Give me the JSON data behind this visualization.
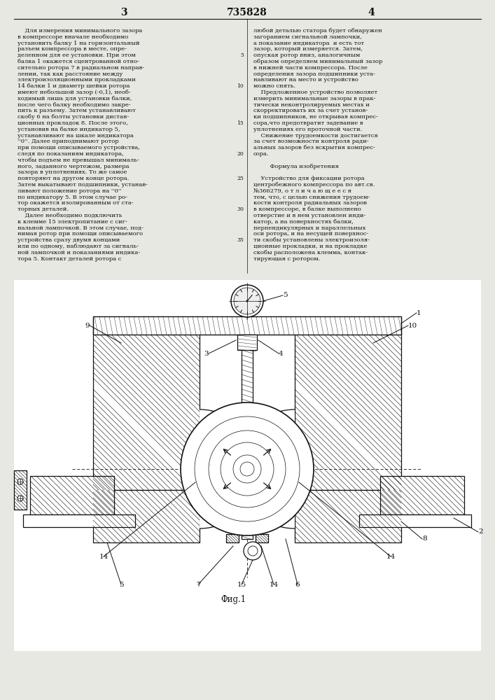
{
  "page_number_left": "3",
  "page_number_center": "735828",
  "page_number_right": "4",
  "background_color": "#e8e8e2",
  "text_color": "#111111",
  "left_column_text": [
    "    Для измерения минимального зазора",
    "в компрессоре вначале необходимо",
    "установить балку 1 на горизонтальный",
    "разъем компрессора в месте, опре-",
    "деленном для ее установки. При этом",
    "балка 1 окажется сцентрованной отно-",
    "сительно ротора 7 в радиальном направ-",
    "лении, так как расстояние между",
    "электроизоляционными прокладками",
    "14 балки 1 и диаметр шейки ротора",
    "имеют небольшой зазор (-0,1), необ-",
    "ходимый лишь для установки балки,",
    "после чего балку необходимо закре-",
    "пить к разъему. Затем устанавливают",
    "скобу 6 на болты установки дистан-",
    "ционных прокладок 8. После этого,",
    "установив на балке индикатор 5,",
    "устанавливают на шкале индикатора",
    "''0''. Далее приподнимают ротор",
    "при помощи описываемого устройства,",
    "следя по показаниям индикатора,",
    "чтобы подъем не превышал минималь-",
    "ного, заданного чертежом, размера",
    "зазора в уплотнениях. То же самое",
    "повторяют на другом конце ротора.",
    "Затем выкатывают подшипники, устанав-",
    "ливают положение ротора на ''0''",
    "по индикатору 5. В этом случае ро-",
    "тор окажется изолированным от ста-",
    "торных деталей.",
    "    Далее необходимо подключить",
    "к клемме 15 электропитание с сиг-",
    "нальной лампочкой. В этом случае, под-",
    "нимая ротор при помощи описываемого",
    "устройства сразу двумя концами",
    "или по одному, наблюдают за сигналь-",
    "ной лампочкой и показаниями индика-",
    "тора 5. Контакт деталей ротора с"
  ],
  "right_column_text": [
    "любой деталью статора будет обнаружен",
    "загоранием сигнальной лампочки,",
    "а показание индикатора  и есть тот",
    "зазор, который измеряется. Затем,",
    "опуская ротор вниз, аналогичным",
    "образом определяем минимальный зазор",
    "в нижней части компрессора. После",
    "определения зазора подшипники уста-",
    "навливают на место и устройство",
    "можно снять.",
    "    Предложенное устройство позволяет",
    "измерить минимальные зазоры в прак-",
    "тически неконтролируемых местах и",
    "скорректировать их за счет установ-",
    "ки подшипников, не открывая компрес-",
    "сора,что предотвратит задевание в",
    "уплотнениях его проточной части.",
    "    Снижение трудоемкости достигается",
    "за счет возможности контроля ради-",
    "альных зазоров без вскрытия компрес-",
    "сора.",
    "",
    "         Формула изобретения",
    "",
    "    Устройство для фиксации ротора",
    "центробежного компрессора по авт.св.",
    "№366279, о т л и ч а ю щ е е с я",
    "тем, что, с целью снижения трудоем-",
    "кости контроля радиальных зазоров",
    "в компрессоре, в балке выполнено",
    "отверстие и в нем установлен инди-",
    "катор, а на поверхностях балки,",
    "перпендикулярных и параллельных",
    "оси ротора, и на несущей поверхнос-",
    "ти скобы установлены электроизоля-",
    "ционные прокладки, и на прокладке",
    "скобы расположена клемма, контак-",
    "тирующая с ротором."
  ],
  "line_numbers": [
    5,
    10,
    15,
    20,
    25,
    30,
    35
  ],
  "line_number_row_indices": [
    4,
    9,
    15,
    20,
    24,
    29,
    34
  ],
  "fig_caption": "Фиg.1"
}
